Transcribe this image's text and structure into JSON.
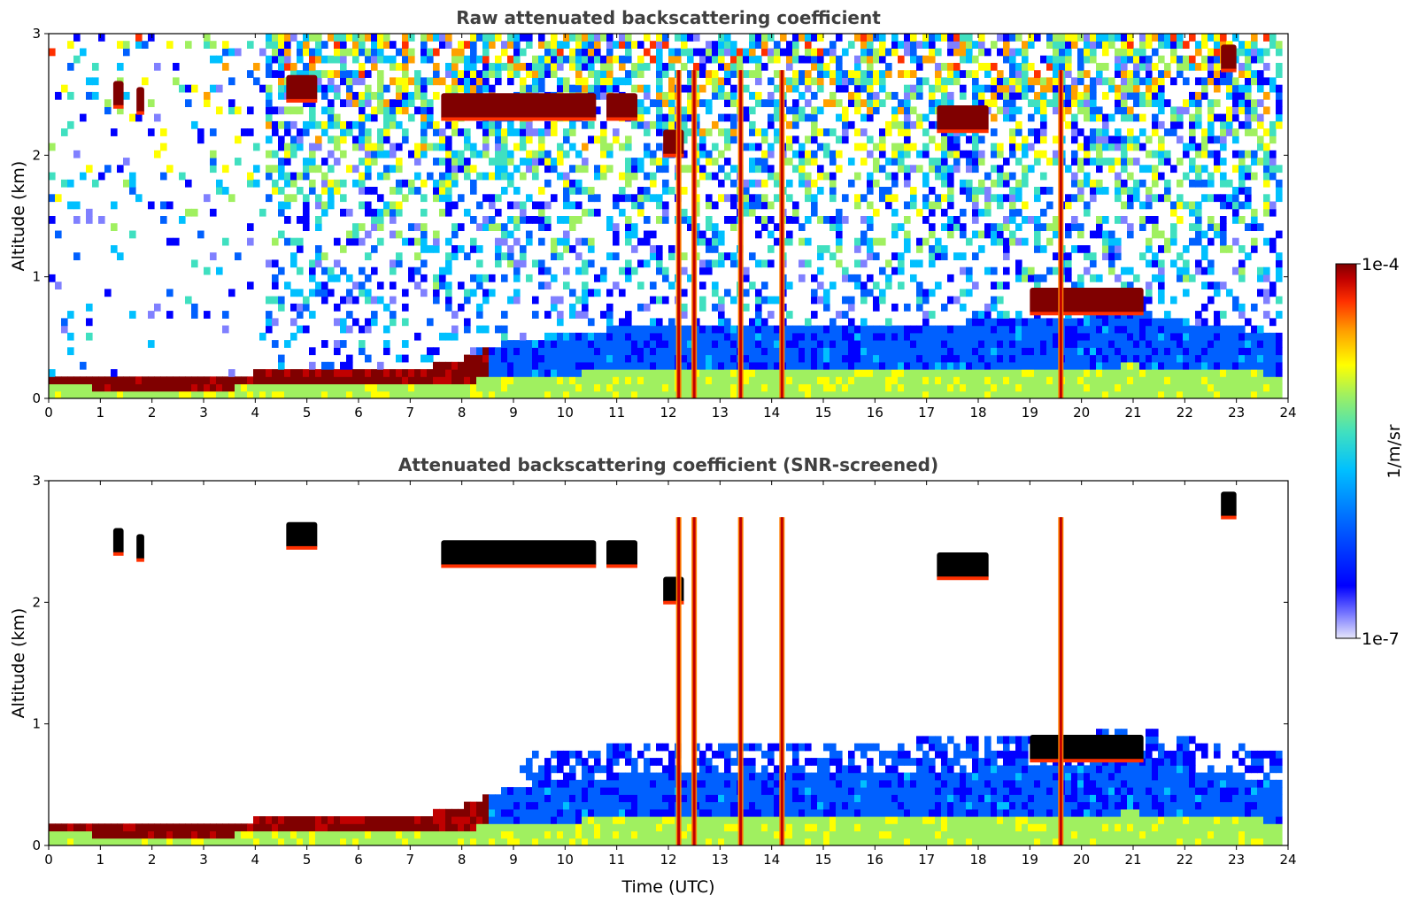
{
  "chart_data": [
    {
      "type": "heatmap",
      "title": "Raw attenuated backscattering coefficient",
      "xlabel": "",
      "ylabel": "Altitude (km)",
      "xlim": [
        0,
        24
      ],
      "ylim": [
        0,
        3
      ],
      "x_ticks": [
        "0",
        "1",
        "2",
        "3",
        "4",
        "5",
        "6",
        "7",
        "8",
        "9",
        "10",
        "11",
        "12",
        "13",
        "14",
        "15",
        "16",
        "17",
        "18",
        "19",
        "20",
        "21",
        "22",
        "23",
        "24"
      ],
      "y_ticks": [
        "0",
        "1",
        "2",
        "3"
      ],
      "boundary_layer_top_km": [
        [
          0,
          0.18
        ],
        [
          1,
          0.17
        ],
        [
          2,
          0.15
        ],
        [
          3,
          0.16
        ],
        [
          4,
          0.18
        ],
        [
          5,
          0.22
        ],
        [
          6,
          0.18
        ],
        [
          7,
          0.2
        ],
        [
          8,
          0.3
        ],
        [
          9,
          0.45
        ],
        [
          10,
          0.5
        ],
        [
          11,
          0.55
        ],
        [
          12,
          0.55
        ],
        [
          13,
          0.55
        ],
        [
          14,
          0.55
        ],
        [
          15,
          0.55
        ],
        [
          16,
          0.55
        ],
        [
          17,
          0.6
        ],
        [
          18,
          0.6
        ],
        [
          19,
          0.65
        ],
        [
          20,
          0.65
        ],
        [
          21,
          0.7
        ],
        [
          22,
          0.6
        ],
        [
          23,
          0.55
        ],
        [
          23.8,
          0.5
        ]
      ],
      "cloud_layers": [
        {
          "t_start": 1.25,
          "t_end": 1.45,
          "alt_km": 2.5
        },
        {
          "t_start": 1.7,
          "t_end": 1.85,
          "alt_km": 2.45
        },
        {
          "t_start": 4.6,
          "t_end": 5.2,
          "alt_km": 2.55
        },
        {
          "t_start": 7.6,
          "t_end": 10.6,
          "alt_km": 2.4
        },
        {
          "t_start": 10.8,
          "t_end": 11.4,
          "alt_km": 2.4
        },
        {
          "t_start": 11.9,
          "t_end": 12.3,
          "alt_km": 2.1
        },
        {
          "t_start": 17.2,
          "t_end": 18.2,
          "alt_km": 2.3
        },
        {
          "t_start": 22.7,
          "t_end": 23.0,
          "alt_km": 2.8
        },
        {
          "t_start": 19.0,
          "t_end": 21.2,
          "alt_km": 0.8
        }
      ],
      "rain_shafts_utc": [
        12.2,
        12.5,
        13.4,
        14.2,
        19.6
      ]
    },
    {
      "type": "heatmap",
      "title": "Attenuated backscattering coefficient (SNR-screened)",
      "xlabel": "Time (UTC)",
      "ylabel": "Altitude (km)",
      "xlim": [
        0,
        24
      ],
      "ylim": [
        0,
        3
      ],
      "x_ticks": [
        "0",
        "1",
        "2",
        "3",
        "4",
        "5",
        "6",
        "7",
        "8",
        "9",
        "10",
        "11",
        "12",
        "13",
        "14",
        "15",
        "16",
        "17",
        "18",
        "19",
        "20",
        "21",
        "22",
        "23",
        "24"
      ],
      "y_ticks": [
        "0",
        "1",
        "2",
        "3"
      ]
    }
  ],
  "colorbar": {
    "label": "1/m/sr",
    "max_label": "1e-4",
    "min_label": "1e-7",
    "colors": [
      "#e6e6fa",
      "#8080ff",
      "#0000ff",
      "#0060ff",
      "#00c0ff",
      "#40e0c0",
      "#a0f060",
      "#ffff00",
      "#ffa000",
      "#ff3000",
      "#c00000",
      "#800000"
    ]
  }
}
